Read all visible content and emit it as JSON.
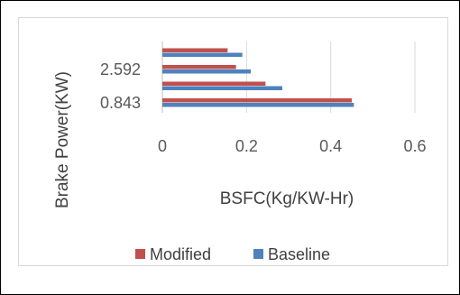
{
  "chart_data": {
    "type": "bar",
    "orientation": "horizontal",
    "categories": [
      "0.843",
      "",
      "2.592",
      ""
    ],
    "series": [
      {
        "name": "Modified",
        "color": "#c0504d",
        "values": [
          0.45,
          0.245,
          0.175,
          0.155
        ]
      },
      {
        "name": "Baseline",
        "color": "#4f81bd",
        "values": [
          0.455,
          0.285,
          0.21,
          0.19
        ]
      }
    ],
    "xlabel": "BSFC(Kg/KW-Hr)",
    "ylabel": "Brake Power(KW)",
    "xlim": [
      0,
      0.6
    ],
    "xticks": [
      "0",
      "0.2",
      "0.4",
      "0.6"
    ],
    "grid": true,
    "legend_position": "bottom",
    "legend": [
      "Modified",
      "Baseline"
    ]
  }
}
